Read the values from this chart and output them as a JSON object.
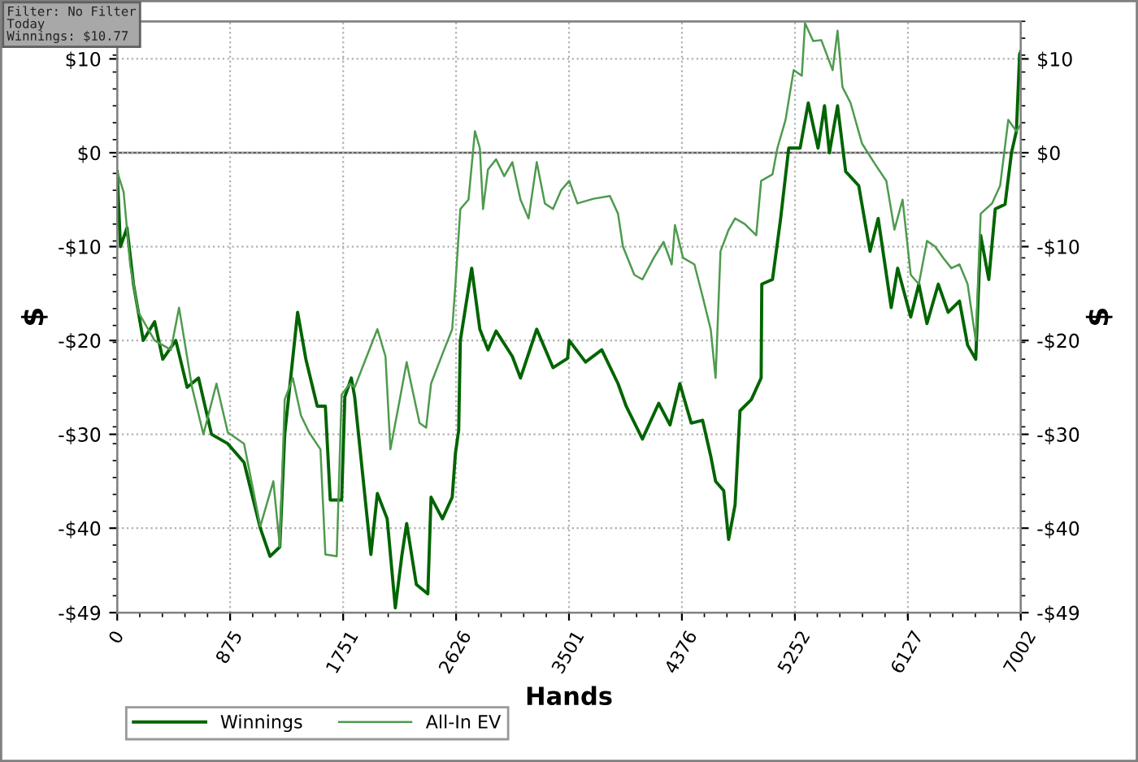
{
  "chart_data": {
    "type": "line",
    "xlabel": "Hands",
    "ylabel": "$",
    "y2label": "$",
    "annotations": [
      "Filter: No Filter\nToday\nWinnings: $10.77"
    ],
    "xlim": [
      0,
      7002
    ],
    "xticks": [
      0,
      875,
      1751,
      2626,
      3501,
      4376,
      5252,
      6127,
      7002
    ],
    "ylim": [
      -49,
      14
    ],
    "yticks": [
      {
        "value": -49,
        "label": "-$49"
      },
      {
        "value": -40,
        "label": "-$40"
      },
      {
        "value": -30,
        "label": "-$30"
      },
      {
        "value": -20,
        "label": "-$20"
      },
      {
        "value": -10,
        "label": "-$10"
      },
      {
        "value": 0,
        "label": "$0"
      },
      {
        "value": 10,
        "label": "$10"
      }
    ],
    "y2lim": [
      -49,
      14
    ],
    "y2ticks": [
      {
        "value": -49,
        "label": "-$49"
      },
      {
        "value": -40,
        "label": "-$40"
      },
      {
        "value": -30,
        "label": "-$30"
      },
      {
        "value": -20,
        "label": "-$20"
      },
      {
        "value": -10,
        "label": "-$10"
      },
      {
        "value": 0,
        "label": "$0"
      },
      {
        "value": 10,
        "label": "$10"
      }
    ],
    "ref_lines": [
      {
        "axis": "y",
        "value": 0,
        "label": null,
        "color": "#606060",
        "line_style": "solid"
      }
    ],
    "grid": true,
    "legend": "bottom",
    "marker": "none",
    "line_style": "solid",
    "series": [
      {
        "name": "Winnings",
        "color": "#006400",
        "x": [
          0,
          25,
          76,
          126,
          202,
          290,
          353,
          454,
          542,
          630,
          731,
          857,
          983,
          1109,
          1184,
          1260,
          1298,
          1398,
          1462,
          1550,
          1613,
          1651,
          1739,
          1764,
          1814,
          1840,
          1966,
          2016,
          2092,
          2155,
          2205,
          2243,
          2318,
          2407,
          2432,
          2520,
          2596,
          2621,
          2646,
          2659,
          2747,
          2810,
          2873,
          2936,
          3062,
          3125,
          3251,
          3377,
          3490,
          3503,
          3629,
          3755,
          3881,
          3944,
          4070,
          4196,
          4284,
          4360,
          4448,
          4536,
          4599,
          4637,
          4700,
          4738,
          4788,
          4826,
          4914,
          4990,
          4995,
          5078,
          5141,
          5204,
          5292,
          5355,
          5431,
          5481,
          5519,
          5582,
          5645,
          5746,
          5834,
          5897,
          5998,
          6048,
          6149,
          6212,
          6275,
          6363,
          6439,
          6527,
          6590,
          6653,
          6691,
          6754,
          6804,
          6880,
          6930,
          6968,
          6993,
          7002
        ],
        "values": [
          -2,
          -10,
          -8,
          -14,
          -20,
          -18,
          -22,
          -20,
          -25,
          -24,
          -30,
          -31,
          -33,
          -40,
          -43,
          -42,
          -30,
          -17,
          -22,
          -27,
          -27,
          -37,
          -37,
          -26,
          -24,
          -26,
          -42.8,
          -36.3,
          -39,
          -48.5,
          -43,
          -39.5,
          -46,
          -47,
          -36.7,
          -39,
          -36.7,
          -32,
          -29.6,
          -20,
          -12.3,
          -18.8,
          -21,
          -19,
          -21.7,
          -24,
          -18.8,
          -22.9,
          -21.9,
          -20,
          -22.3,
          -21,
          -24.6,
          -27,
          -30.5,
          -26.7,
          -29,
          -24.6,
          -28.8,
          -28.5,
          -32.3,
          -35,
          -36,
          -41.2,
          -37.5,
          -27.5,
          -26.3,
          -24,
          -14,
          -13.5,
          -7,
          0.5,
          0.5,
          5.3,
          0.5,
          5,
          0,
          5,
          -2,
          -3.5,
          -10.5,
          -7,
          -16.5,
          -12.3,
          -17.5,
          -14,
          -18.2,
          -14,
          -17,
          -15.8,
          -20.5,
          -22,
          -8.8,
          -13.5,
          -6,
          -5.5,
          0,
          2.3,
          10.5,
          10.8
        ]
      },
      {
        "name": "All-In EV",
        "color": "#4e9a4e",
        "x": [
          0,
          50,
          101,
          164,
          290,
          416,
          479,
          580,
          668,
          769,
          857,
          983,
          1109,
          1210,
          1260,
          1298,
          1361,
          1424,
          1487,
          1575,
          1613,
          1701,
          1739,
          1802,
          1840,
          1928,
          2016,
          2079,
          2117,
          2180,
          2243,
          2268,
          2343,
          2394,
          2432,
          2533,
          2596,
          2621,
          2659,
          2722,
          2772,
          2810,
          2835,
          2873,
          2936,
          2999,
          3062,
          3125,
          3188,
          3251,
          3314,
          3377,
          3440,
          3503,
          3566,
          3692,
          3818,
          3881,
          3919,
          4007,
          4070,
          4158,
          4234,
          4297,
          4322,
          4385,
          4473,
          4536,
          4599,
          4637,
          4675,
          4738,
          4788,
          4864,
          4952,
          4990,
          5078,
          5116,
          5179,
          5242,
          5305,
          5330,
          5393,
          5456,
          5544,
          5582,
          5620,
          5683,
          5771,
          5872,
          5960,
          6023,
          6086,
          6149,
          6212,
          6275,
          6338,
          6401,
          6464,
          6527,
          6590,
          6653,
          6691,
          6779,
          6842,
          6905,
          6968,
          7002
        ],
        "values": [
          -2,
          -4.2,
          -12,
          -17,
          -20,
          -21,
          -16.5,
          -25,
          -30,
          -24.6,
          -29.8,
          -31,
          -39.8,
          -35,
          -42,
          -26.3,
          -24,
          -28,
          -29.8,
          -31.6,
          -42.8,
          -43,
          -25.8,
          -24.6,
          -25,
          -21.9,
          -18.8,
          -21.7,
          -31.6,
          -27,
          -22.3,
          -24,
          -28.8,
          -29.3,
          -24.6,
          -21,
          -18.8,
          -14,
          -6,
          -5,
          2.3,
          0.5,
          -6,
          -1.8,
          -0.7,
          -2.5,
          -1,
          -5,
          -7,
          -1,
          -5.4,
          -6,
          -4,
          -3,
          -5.4,
          -4.9,
          -4.6,
          -6.5,
          -10,
          -13,
          -13.5,
          -11.2,
          -9.5,
          -11.9,
          -7.7,
          -11.2,
          -11.9,
          -15.3,
          -18.8,
          -24,
          -10.5,
          -8.2,
          -7,
          -7.6,
          -8.8,
          -3,
          -2.3,
          0.5,
          3.5,
          8.8,
          8.2,
          13.8,
          11.9,
          12,
          8.8,
          13,
          7,
          5.3,
          1,
          -1.2,
          -3,
          -8.2,
          -5,
          -13,
          -14,
          -9.4,
          -10,
          -11.2,
          -12.3,
          -11.9,
          -14,
          -20,
          -6.5,
          -5.4,
          -3.5,
          3.5,
          2.3,
          3
        ]
      }
    ]
  }
}
